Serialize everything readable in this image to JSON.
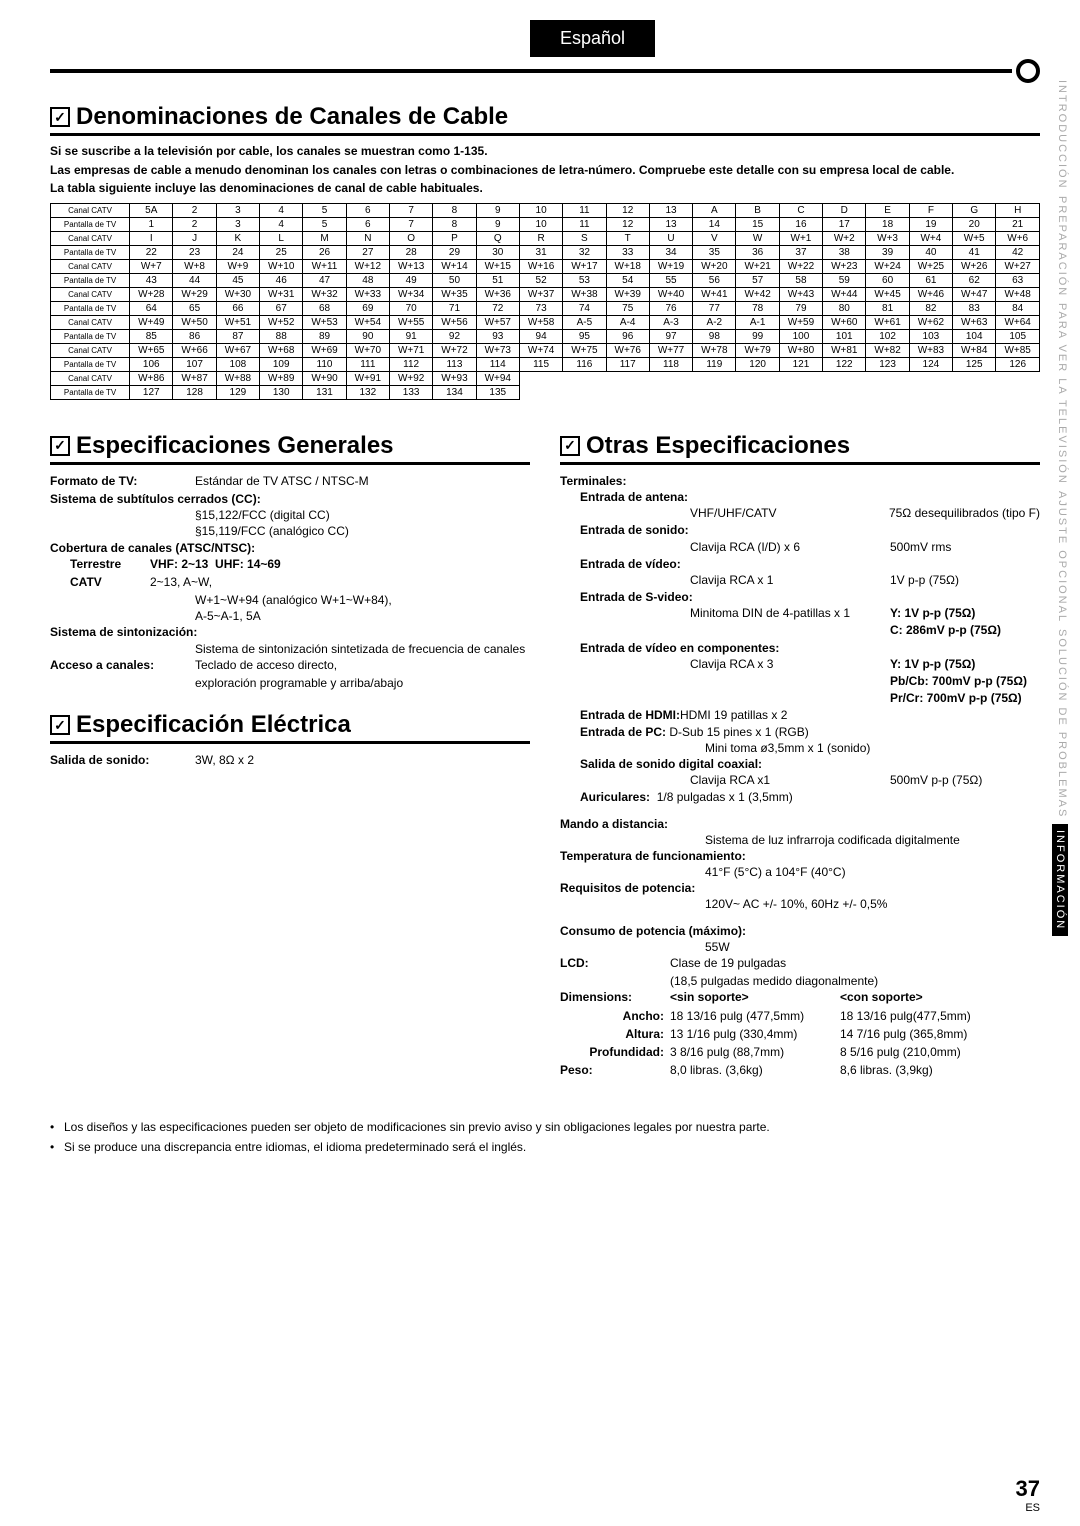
{
  "lang_tab": "Español",
  "sidebar": [
    "INTRODUCCIÓN",
    "PREPARACIÓN",
    "PARA VER LA TELEVISIÓN",
    "AJUSTE OPCIONAL",
    "SOLUCIÓN DE PROBLEMAS",
    "INFORMACIÓN"
  ],
  "sidebar_active_index": 5,
  "section_cable": "Denominaciones de Canales de Cable",
  "intro_lines": [
    "Si se suscribe a la televisión por cable, los canales se muestran como 1-135.",
    "Las empresas de cable a menudo denominan los canales con letras o combinaciones de letra-número. Compruebe este detalle con su empresa local de cable.",
    "La tabla siguiente incluye las denominaciones de canal de cable habituales."
  ],
  "row_label_catv": "Canal CATV",
  "row_label_tv": "Pantalla de TV",
  "catv_pairs": [
    [
      [
        "5A",
        "2",
        "3",
        "4",
        "5",
        "6",
        "7",
        "8",
        "9",
        "10",
        "11",
        "12",
        "13",
        "A",
        "B",
        "C",
        "D",
        "E",
        "F",
        "G",
        "H"
      ],
      [
        "1",
        "2",
        "3",
        "4",
        "5",
        "6",
        "7",
        "8",
        "9",
        "10",
        "11",
        "12",
        "13",
        "14",
        "15",
        "16",
        "17",
        "18",
        "19",
        "20",
        "21"
      ]
    ],
    [
      [
        "I",
        "J",
        "K",
        "L",
        "M",
        "N",
        "O",
        "P",
        "Q",
        "R",
        "S",
        "T",
        "U",
        "V",
        "W",
        "W+1",
        "W+2",
        "W+3",
        "W+4",
        "W+5",
        "W+6"
      ],
      [
        "22",
        "23",
        "24",
        "25",
        "26",
        "27",
        "28",
        "29",
        "30",
        "31",
        "32",
        "33",
        "34",
        "35",
        "36",
        "37",
        "38",
        "39",
        "40",
        "41",
        "42"
      ]
    ],
    [
      [
        "W+7",
        "W+8",
        "W+9",
        "W+10",
        "W+11",
        "W+12",
        "W+13",
        "W+14",
        "W+15",
        "W+16",
        "W+17",
        "W+18",
        "W+19",
        "W+20",
        "W+21",
        "W+22",
        "W+23",
        "W+24",
        "W+25",
        "W+26",
        "W+27"
      ],
      [
        "43",
        "44",
        "45",
        "46",
        "47",
        "48",
        "49",
        "50",
        "51",
        "52",
        "53",
        "54",
        "55",
        "56",
        "57",
        "58",
        "59",
        "60",
        "61",
        "62",
        "63"
      ]
    ],
    [
      [
        "W+28",
        "W+29",
        "W+30",
        "W+31",
        "W+32",
        "W+33",
        "W+34",
        "W+35",
        "W+36",
        "W+37",
        "W+38",
        "W+39",
        "W+40",
        "W+41",
        "W+42",
        "W+43",
        "W+44",
        "W+45",
        "W+46",
        "W+47",
        "W+48"
      ],
      [
        "64",
        "65",
        "66",
        "67",
        "68",
        "69",
        "70",
        "71",
        "72",
        "73",
        "74",
        "75",
        "76",
        "77",
        "78",
        "79",
        "80",
        "81",
        "82",
        "83",
        "84"
      ]
    ],
    [
      [
        "W+49",
        "W+50",
        "W+51",
        "W+52",
        "W+53",
        "W+54",
        "W+55",
        "W+56",
        "W+57",
        "W+58",
        "A-5",
        "A-4",
        "A-3",
        "A-2",
        "A-1",
        "W+59",
        "W+60",
        "W+61",
        "W+62",
        "W+63",
        "W+64"
      ],
      [
        "85",
        "86",
        "87",
        "88",
        "89",
        "90",
        "91",
        "92",
        "93",
        "94",
        "95",
        "96",
        "97",
        "98",
        "99",
        "100",
        "101",
        "102",
        "103",
        "104",
        "105"
      ]
    ],
    [
      [
        "W+65",
        "W+66",
        "W+67",
        "W+68",
        "W+69",
        "W+70",
        "W+71",
        "W+72",
        "W+73",
        "W+74",
        "W+75",
        "W+76",
        "W+77",
        "W+78",
        "W+79",
        "W+80",
        "W+81",
        "W+82",
        "W+83",
        "W+84",
        "W+85"
      ],
      [
        "106",
        "107",
        "108",
        "109",
        "110",
        "111",
        "112",
        "113",
        "114",
        "115",
        "116",
        "117",
        "118",
        "119",
        "120",
        "121",
        "122",
        "123",
        "124",
        "125",
        "126"
      ]
    ],
    [
      [
        "W+86",
        "W+87",
        "W+88",
        "W+89",
        "W+90",
        "W+91",
        "W+92",
        "W+93",
        "W+94",
        "",
        "",
        "",
        "",
        "",
        "",
        "",
        "",
        "",
        "",
        "",
        ""
      ],
      [
        "127",
        "128",
        "129",
        "130",
        "131",
        "132",
        "133",
        "134",
        "135",
        "",
        "",
        "",
        "",
        "",
        "",
        "",
        "",
        "",
        "",
        "",
        ""
      ]
    ]
  ],
  "section_general": "Especificaciones Generales",
  "section_elec": "Especificación Eléctrica",
  "section_other": "Otras Especificaciones",
  "general": {
    "formato_label": "Formato de TV:",
    "formato_val": "Estándar de TV ATSC / NTSC-M",
    "cc_label": "Sistema de subtítulos cerrados (CC):",
    "cc_l1": "§15,122/FCC (digital CC)",
    "cc_l2": "§15,119/FCC (analógico CC)",
    "cov_label": "Cobertura de canales (ATSC/NTSC):",
    "terr_label": "Terrestre",
    "terr_vhf": "VHF: 2~13",
    "terr_uhf": "UHF: 14~69",
    "catv_label": "CATV",
    "catv_l1": "2~13, A~W,",
    "catv_l2": "W+1~W+94 (analógico W+1~W+84),",
    "catv_l3": "A-5~A-1, 5A",
    "sint_label": "Sistema de sintonización:",
    "sint_val": "Sistema de sintonización sintetizada de frecuencia de canales",
    "acc_label": "Acceso a canales:",
    "acc_l1": "Teclado de acceso directo,",
    "acc_l2": "exploración programable y arriba/abajo"
  },
  "elec": {
    "salida_label": "Salida de sonido:",
    "salida_val": "3W, 8Ω x 2"
  },
  "other": {
    "terminales": "Terminales:",
    "ant_label": "Entrada de antena:",
    "ant_m": "VHF/UHF/CATV",
    "ant_r": "75Ω desequilibrados (tipo F)",
    "son_label": "Entrada de sonido:",
    "son_m": "Clavija RCA (I/D) x 6",
    "son_r": "500mV rms",
    "vid_label": "Entrada de vídeo:",
    "vid_m": "Clavija RCA x 1",
    "vid_r": "1V p-p (75Ω)",
    "sv_label": "Entrada de S-video:",
    "sv_m": "Minitoma DIN de 4-patillas x 1",
    "sv_y": "Y: 1V p-p (75Ω)",
    "sv_c": "C: 286mV p-p (75Ω)",
    "comp_label": "Entrada de vídeo en componentes:",
    "comp_m": "Clavija RCA x 3",
    "comp_y": "Y:    1V p-p (75Ω)",
    "comp_pb": "Pb/Cb: 700mV p-p (75Ω)",
    "comp_pr": "Pr/Cr:  700mV p-p (75Ω)",
    "hdmi_label": "Entrada de HDMI:",
    "hdmi_val": "HDMI 19 patillas x 2",
    "pc_label": "Entrada de PC:",
    "pc_l1": "D-Sub 15 pines x 1 (RGB)",
    "pc_l2": "Mini toma ø3,5mm x 1 (sonido)",
    "dig_label": "Salida de sonido digital coaxial:",
    "dig_m": "Clavija RCA x1",
    "dig_r": "500mV p-p (75Ω)",
    "aur_label": "Auriculares:",
    "aur_val": "1/8 pulgadas x 1 (3,5mm)",
    "mando_label": "Mando a distancia:",
    "mando_val": "Sistema de luz infrarroja codificada digitalmente",
    "temp_label": "Temperatura de funcionamiento:",
    "temp_val": "41°F (5°C) a 104°F (40°C)",
    "pot_label": "Requisitos de potencia:",
    "pot_val": "120V~ AC +/- 10%, 60Hz +/- 0,5%",
    "cons_label": "Consumo de potencia (máximo):",
    "cons_val": "55W",
    "lcd_label": "LCD:",
    "lcd_l1": "Clase de 19 pulgadas",
    "lcd_l2": "(18,5 pulgadas medido diagonalmente)",
    "dim_label": "Dimensions:",
    "dim_sin": "<sin soporte>",
    "dim_con": "<con soporte>",
    "ancho_label": "Ancho:",
    "ancho_sin": "18 13/16 pulg (477,5mm)",
    "ancho_con": "18 13/16 pulg(477,5mm)",
    "alt_label": "Altura:",
    "alt_sin": "13 1/16 pulg  (330,4mm)",
    "alt_con": "14 7/16 pulg  (365,8mm)",
    "prof_label": "Profundidad:",
    "prof_sin": "3 8/16 pulg    (88,7mm)",
    "prof_con": "8 5/16 pulg   (210,0mm)",
    "peso_label": "Peso:",
    "peso_sin": "8,0 libras.      (3,6kg)",
    "peso_con": "8,6 libras.     (3,9kg)"
  },
  "notes": [
    "Los diseños y las especificaciones pueden ser objeto de modificaciones sin previo aviso y sin obligaciones legales por nuestra parte.",
    "Si se produce una discrepancia entre idiomas, el idioma predeterminado será el inglés."
  ],
  "page_num": "37",
  "page_es": "ES"
}
